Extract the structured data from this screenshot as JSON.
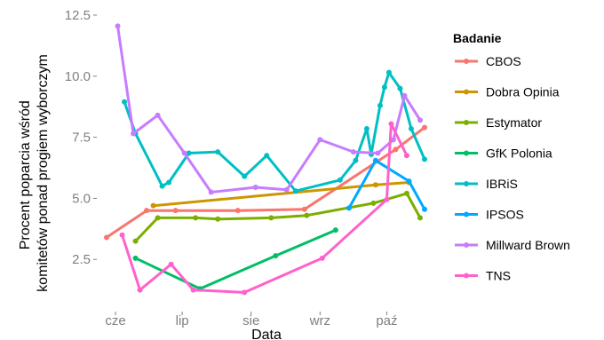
{
  "chart_data": {
    "type": "line",
    "xlabel": "Data",
    "ylabel": [
      "Procent poparcia wśród",
      "komitetów ponad progiem wyborczym"
    ],
    "x_ticks": [
      {
        "label": "cze",
        "date": "2015-06-01"
      },
      {
        "label": "lip",
        "date": "2015-07-01"
      },
      {
        "label": "sie",
        "date": "2015-08-01"
      },
      {
        "label": "wrz",
        "date": "2015-09-01"
      },
      {
        "label": "paź",
        "date": "2015-10-01"
      }
    ],
    "y_ticks": [
      2.5,
      5.0,
      7.5,
      10.0,
      12.5
    ],
    "y_tick_labels": [
      "2.5",
      "5.0",
      "7.5",
      "10.0",
      "12.5"
    ],
    "xlim": [
      "2015-05-24",
      "2015-10-22"
    ],
    "ylim": [
      0.4,
      12.9
    ],
    "legend_title": "Badanie",
    "legend_position": "right",
    "grid": false,
    "series": [
      {
        "name": "CBOS",
        "color": "#F8766D",
        "points": [
          [
            "2015-05-28",
            3.4
          ],
          [
            "2015-06-15",
            4.5
          ],
          [
            "2015-06-28",
            4.5
          ],
          [
            "2015-07-26",
            4.5
          ],
          [
            "2015-08-25",
            4.55
          ],
          [
            "2015-10-05",
            7.0
          ],
          [
            "2015-10-18",
            7.9
          ]
        ]
      },
      {
        "name": "Dobra Opinia",
        "color": "#CD9600",
        "points": [
          [
            "2015-06-18",
            4.7
          ],
          [
            "2015-09-26",
            5.55
          ],
          [
            "2015-10-11",
            5.65
          ]
        ]
      },
      {
        "name": "Estymator",
        "color": "#7CAE00",
        "points": [
          [
            "2015-06-10",
            3.25
          ],
          [
            "2015-06-20",
            4.2
          ],
          [
            "2015-07-07",
            4.2
          ],
          [
            "2015-07-17",
            4.15
          ],
          [
            "2015-08-10",
            4.2
          ],
          [
            "2015-08-26",
            4.3
          ],
          [
            "2015-09-25",
            4.8
          ],
          [
            "2015-10-10",
            5.2
          ],
          [
            "2015-10-16",
            4.2
          ]
        ]
      },
      {
        "name": "GfK Polonia",
        "color": "#00BE67",
        "points": [
          [
            "2015-06-10",
            2.55
          ],
          [
            "2015-07-09",
            1.3
          ],
          [
            "2015-08-12",
            2.65
          ],
          [
            "2015-09-08",
            3.7
          ]
        ]
      },
      {
        "name": "IBRiS",
        "color": "#00BFC4",
        "points": [
          [
            "2015-06-05",
            8.95
          ],
          [
            "2015-06-10",
            7.65
          ],
          [
            "2015-06-22",
            5.5
          ],
          [
            "2015-06-25",
            5.65
          ],
          [
            "2015-07-04",
            6.85
          ],
          [
            "2015-07-17",
            6.9
          ],
          [
            "2015-07-29",
            5.9
          ],
          [
            "2015-08-08",
            6.75
          ],
          [
            "2015-08-21",
            5.3
          ],
          [
            "2015-09-10",
            5.75
          ],
          [
            "2015-09-17",
            6.55
          ],
          [
            "2015-09-22",
            7.85
          ],
          [
            "2015-09-24",
            6.8
          ],
          [
            "2015-09-28",
            8.8
          ],
          [
            "2015-09-30",
            9.55
          ],
          [
            "2015-10-02",
            10.15
          ],
          [
            "2015-10-07",
            9.5
          ],
          [
            "2015-10-12",
            7.85
          ],
          [
            "2015-10-18",
            6.6
          ]
        ]
      },
      {
        "name": "IPSOS",
        "color": "#00A9FF",
        "points": [
          [
            "2015-09-14",
            4.6
          ],
          [
            "2015-09-26",
            6.55
          ],
          [
            "2015-10-11",
            5.7
          ],
          [
            "2015-10-18",
            4.55
          ]
        ]
      },
      {
        "name": "Millward Brown",
        "color": "#C77CFF",
        "points": [
          [
            "2015-06-02",
            12.05
          ],
          [
            "2015-06-09",
            7.65
          ],
          [
            "2015-06-20",
            8.4
          ],
          [
            "2015-07-02",
            6.85
          ],
          [
            "2015-07-14",
            5.25
          ],
          [
            "2015-08-03",
            5.45
          ],
          [
            "2015-08-17",
            5.35
          ],
          [
            "2015-09-01",
            7.4
          ],
          [
            "2015-09-16",
            6.9
          ],
          [
            "2015-09-27",
            6.85
          ],
          [
            "2015-10-04",
            7.4
          ],
          [
            "2015-10-09",
            9.2
          ],
          [
            "2015-10-16",
            8.2
          ]
        ]
      },
      {
        "name": "TNS",
        "color": "#FF61CC",
        "points": [
          [
            "2015-06-04",
            3.5
          ],
          [
            "2015-06-12",
            1.25
          ],
          [
            "2015-06-26",
            2.3
          ],
          [
            "2015-07-06",
            1.25
          ],
          [
            "2015-07-29",
            1.15
          ],
          [
            "2015-09-02",
            2.55
          ],
          [
            "2015-10-01",
            4.95
          ],
          [
            "2015-10-03",
            8.05
          ],
          [
            "2015-10-10",
            6.75
          ]
        ]
      }
    ]
  }
}
